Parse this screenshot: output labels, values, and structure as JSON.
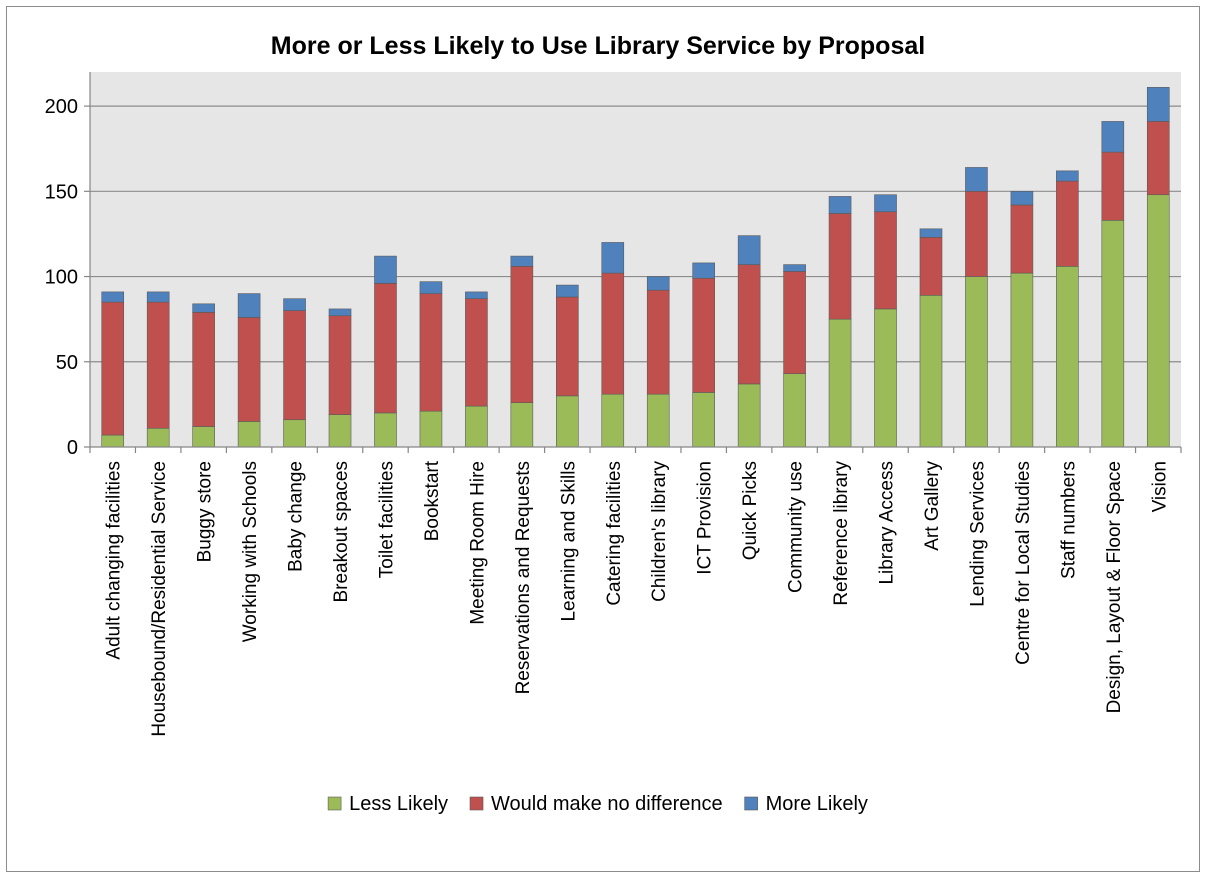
{
  "chart_data": {
    "type": "bar",
    "stacked": true,
    "title": "More or Less Likely to Use Library Service by Proposal",
    "xlabel": "",
    "ylabel": "",
    "ylim": [
      0,
      220
    ],
    "yticks": [
      0,
      50,
      100,
      150,
      200
    ],
    "grid": true,
    "legend_position": "bottom",
    "categories": [
      "Adult changing facilities",
      "Housebound/Residential Service",
      "Buggy store",
      "Working with Schools",
      "Baby change",
      "Breakout spaces",
      "Toilet facilities",
      "Bookstart",
      "Meeting Room Hire",
      "Reservations and Requests",
      "Learning and Skills",
      "Catering facilities",
      "Children's library",
      "ICT Provision",
      "Quick Picks",
      "Community use",
      "Reference library",
      "Library Access",
      "Art Gallery",
      "Lending Services",
      "Centre for Local Studies",
      "Staff numbers",
      "Design, Layout & Floor Space",
      "Vision"
    ],
    "series": [
      {
        "name": "Less Likely",
        "color": "#9bbb59",
        "values": [
          7,
          11,
          12,
          15,
          16,
          19,
          20,
          21,
          24,
          26,
          30,
          31,
          31,
          32,
          37,
          43,
          75,
          81,
          89,
          100,
          102,
          106,
          133,
          148
        ]
      },
      {
        "name": "Would make no difference",
        "color": "#c0504d",
        "values": [
          78,
          74,
          67,
          61,
          64,
          58,
          76,
          69,
          63,
          80,
          58,
          71,
          61,
          67,
          70,
          60,
          62,
          57,
          34,
          50,
          40,
          50,
          40,
          43
        ]
      },
      {
        "name": "More Likely",
        "color": "#4f81bd",
        "values": [
          6,
          6,
          5,
          14,
          7,
          4,
          16,
          7,
          4,
          6,
          7,
          18,
          8,
          9,
          17,
          4,
          10,
          10,
          5,
          14,
          8,
          6,
          18,
          20
        ]
      }
    ]
  }
}
